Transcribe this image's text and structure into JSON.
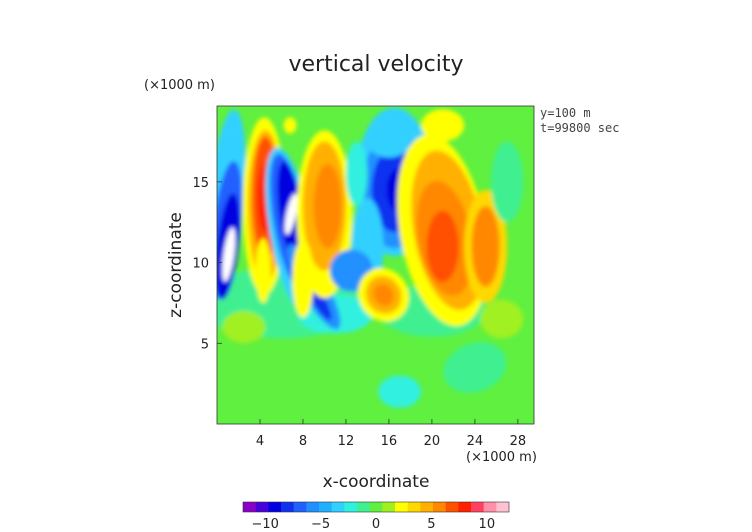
{
  "chart_data": {
    "type": "heatmap",
    "title": "vertical velocity",
    "xlabel": "x-coordinate",
    "ylabel": "z-coordinate",
    "x_unit": "(×1000 m)",
    "y_unit": "(×1000 m)",
    "annotations": [
      "y=100 m",
      "t=99800 sec"
    ],
    "xlim": [
      0,
      29.5
    ],
    "ylim": [
      0,
      19.7
    ],
    "x_ticks": [
      4,
      8,
      12,
      16,
      20,
      24,
      28
    ],
    "y_ticks": [
      5,
      10,
      15
    ],
    "colorbar": {
      "range": [
        -12,
        12
      ],
      "ticks": [
        -10,
        -5,
        0,
        5,
        10
      ],
      "colors": [
        "#8a00c8",
        "#4a00d8",
        "#0000e0",
        "#1030f0",
        "#2060ff",
        "#2090ff",
        "#20b0ff",
        "#30d0ff",
        "#30f0e0",
        "#40f090",
        "#60f040",
        "#a0f020",
        "#ffff00",
        "#ffd800",
        "#ffb000",
        "#ff8800",
        "#ff5000",
        "#ff2000",
        "#ff4060",
        "#ff90a8",
        "#ffc0d0"
      ]
    },
    "features": [
      {
        "kind": "updraft",
        "x": 4.5,
        "z": 14.0,
        "peak": 10.5
      },
      {
        "kind": "downdraft",
        "x": 6.8,
        "z": 12.8,
        "peak": -12.0
      },
      {
        "kind": "downdraft",
        "x": 0.8,
        "z": 10.5,
        "peak": -12.0
      },
      {
        "kind": "updraft",
        "x": 10.0,
        "z": 13.0,
        "peak": 7.0
      },
      {
        "kind": "downdraft",
        "x": 16.5,
        "z": 14.0,
        "peak": -8.0
      },
      {
        "kind": "updraft",
        "x": 21.0,
        "z": 11.5,
        "peak": 9.0
      },
      {
        "kind": "updraft",
        "x": 15.5,
        "z": 8.0,
        "peak": 6.0
      }
    ]
  }
}
